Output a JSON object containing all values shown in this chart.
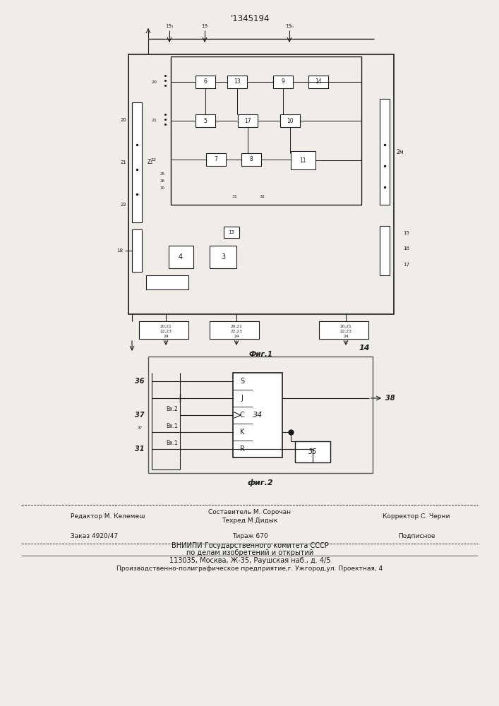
{
  "title": "'1345194",
  "fig1_caption": "Фиг.1",
  "fig2_caption": "фиг.2",
  "bg_color": "#f0ede8",
  "line_color": "#1a1a1a",
  "editor_line": "Редактор М. Келемеш",
  "composer_line": "Составитель М. Сорочан",
  "techred_line": "Техред М.Дидык",
  "corrector_line": "Корректор С. Черни",
  "order_line": "Заказ 4920/47",
  "tirazh_line": "Тираж 670",
  "podpisnoe_line": "Подписное",
  "vniip1": "ВНИИПИ Государственного комитета СССР",
  "vniip2": "по делам изобретений и открытий",
  "vniip3": "113035, Москва, Ж-35, Раушская наб., д. 4/5",
  "factory_line": "Производственно-полиграфическое предприятие,г. Ужгород,ул. Проектная, 4"
}
